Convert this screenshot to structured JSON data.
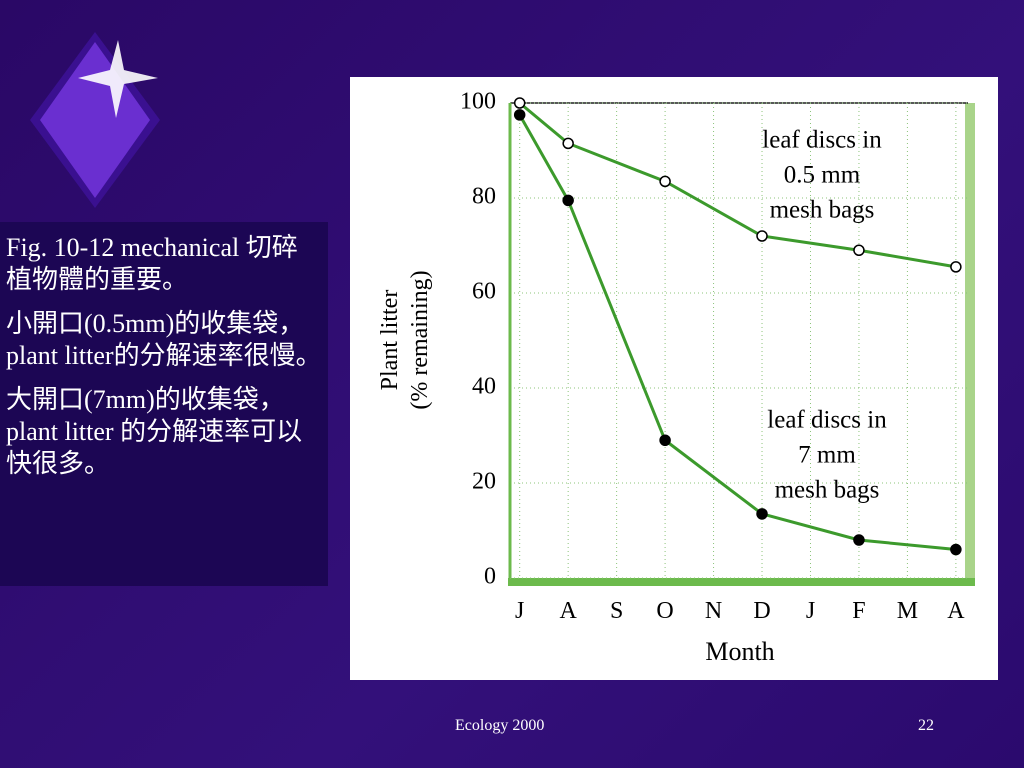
{
  "slide": {
    "paragraphs": [
      "Fig. 10-12 mechanical 切碎植物體的重要。",
      "小開口(0.5mm)的收集袋，plant litter的分解速率很慢。",
      "大開口(7mm)的收集袋，plant litter 的分解速率可以快很多。"
    ],
    "footer": "Ecology 2000",
    "page_number": "22"
  },
  "chart_data": {
    "type": "line",
    "y_label": [
      "Plant litter",
      "(% remaining)"
    ],
    "x_label": "Month",
    "xlim": [
      -0.2,
      9.25
    ],
    "xticks": [
      {
        "value": 0,
        "label": "J"
      },
      {
        "value": 1,
        "label": "A"
      },
      {
        "value": 2,
        "label": "S"
      },
      {
        "value": 3,
        "label": "O"
      },
      {
        "value": 4,
        "label": "N"
      },
      {
        "value": 5,
        "label": "D"
      },
      {
        "value": 6,
        "label": "J"
      },
      {
        "value": 7,
        "label": "F"
      },
      {
        "value": 8,
        "label": "M"
      },
      {
        "value": 9,
        "label": "A"
      }
    ],
    "ylim": [
      0,
      100
    ],
    "yticks": [
      0,
      20,
      40,
      60,
      80,
      100
    ],
    "grid": true,
    "series": [
      {
        "name": [
          "leaf discs in",
          "0.5 mm",
          "mesh bags"
        ],
        "color": "#3c9a2c",
        "marker": "open",
        "x": [
          0,
          1,
          3,
          5,
          7,
          9
        ],
        "values": [
          100,
          91.5,
          83.5,
          72,
          69,
          65.5
        ]
      },
      {
        "name": [
          "leaf discs in",
          "7 mm",
          "mesh bags"
        ],
        "color": "#3c9a2c",
        "marker": "filled",
        "x": [
          0,
          1,
          3,
          5,
          7,
          9
        ],
        "values": [
          97.5,
          79.5,
          29,
          13.5,
          8,
          6
        ]
      }
    ]
  }
}
